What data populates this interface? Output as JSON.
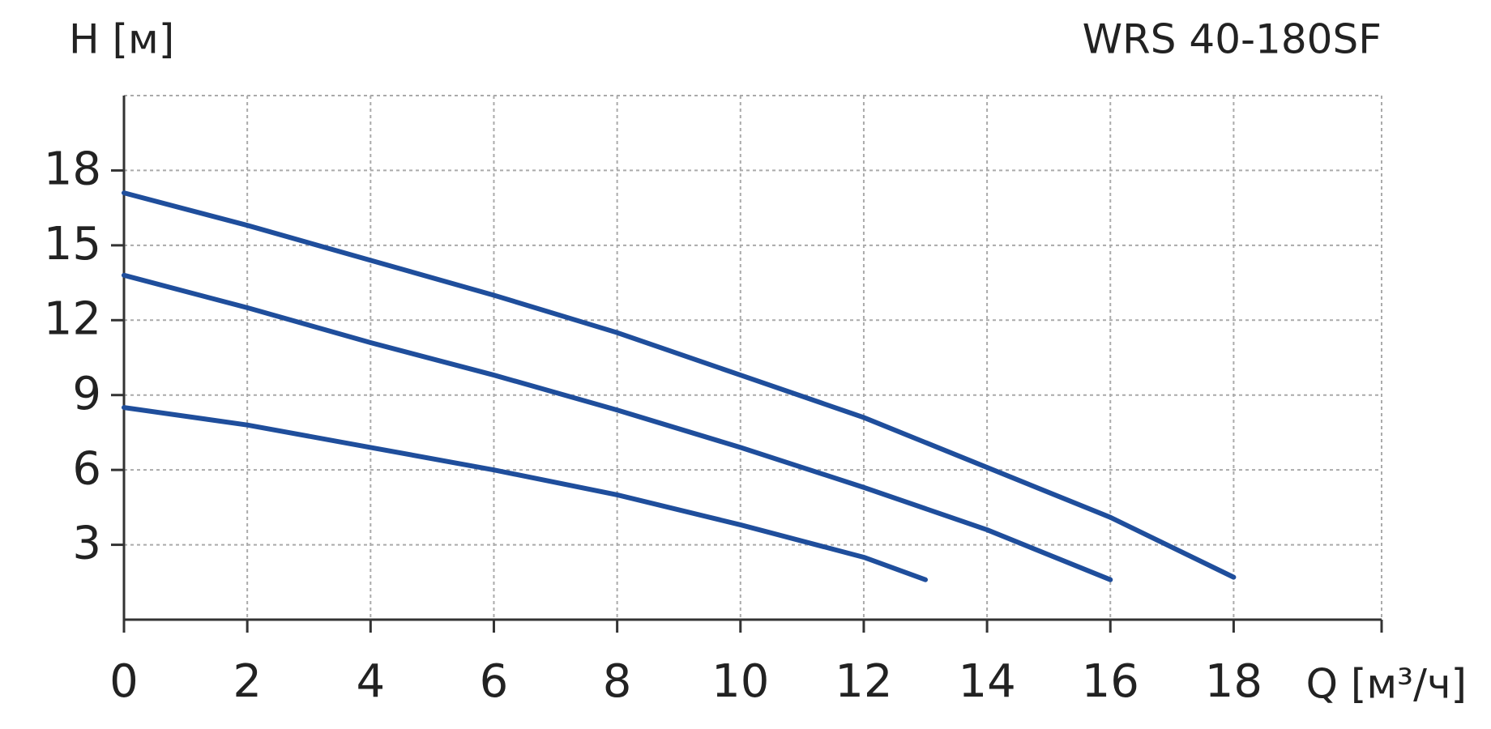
{
  "chart_data": {
    "type": "line",
    "title": "WRS 40-180SF",
    "y_label": "H [м]",
    "x_label": "Q [м³/ч]",
    "xlim": [
      0,
      20.4
    ],
    "xticks": [
      0,
      2,
      4,
      6,
      8,
      10,
      12,
      14,
      16,
      18
    ],
    "ylim": [
      0,
      21
    ],
    "yticks": [
      3,
      6,
      9,
      12,
      15,
      18
    ],
    "grid": true,
    "series": [
      {
        "color": "#1f4e9c",
        "x": [
          0,
          2,
          4,
          6,
          8,
          10,
          12,
          14,
          16,
          18
        ],
        "values": [
          17.1,
          15.8,
          14.4,
          13.0,
          11.5,
          9.8,
          8.1,
          6.1,
          4.1,
          1.7
        ]
      },
      {
        "color": "#1f4e9c",
        "x": [
          0,
          2,
          4,
          6,
          8,
          10,
          12,
          14,
          16
        ],
        "values": [
          13.8,
          12.5,
          11.1,
          9.8,
          8.4,
          6.9,
          5.3,
          3.6,
          1.6
        ]
      },
      {
        "color": "#1f4e9c",
        "x": [
          0,
          2,
          4,
          6,
          8,
          10,
          12,
          13
        ],
        "values": [
          8.5,
          7.8,
          6.9,
          6.0,
          5.0,
          3.8,
          2.5,
          1.6
        ]
      }
    ]
  }
}
